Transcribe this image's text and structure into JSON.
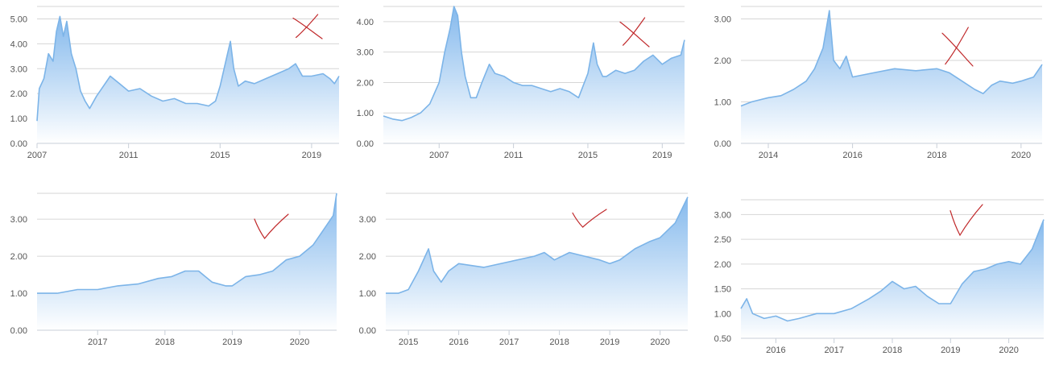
{
  "colors": {
    "line": "#7cb4e8",
    "area_top": "#7fb6ec",
    "area_bottom": "#ffffff",
    "grid": "#d6d6d6",
    "annotation": "#c0282a"
  },
  "chart_data": [
    {
      "type": "area",
      "annotation": "cross-mark",
      "yticks": [
        "0.00",
        "1.00",
        "2.00",
        "3.00",
        "4.00",
        "5.00"
      ],
      "ylim": [
        0,
        5.5
      ],
      "xticks": [
        "2007",
        "2011",
        "2015",
        "2019"
      ],
      "xtick_values": [
        2007,
        2011,
        2015,
        2019
      ],
      "xlim": [
        2007,
        2020.2
      ],
      "x": [
        2007.0,
        2007.1,
        2007.3,
        2007.5,
        2007.7,
        2007.85,
        2008.0,
        2008.15,
        2008.3,
        2008.5,
        2008.7,
        2008.9,
        2009.1,
        2009.3,
        2009.6,
        2009.9,
        2010.2,
        2010.6,
        2011.0,
        2011.5,
        2012.0,
        2012.5,
        2013.0,
        2013.5,
        2014.0,
        2014.5,
        2014.8,
        2015.0,
        2015.3,
        2015.45,
        2015.6,
        2015.8,
        2016.1,
        2016.5,
        2017.0,
        2017.5,
        2018.0,
        2018.3,
        2018.6,
        2019.0,
        2019.5,
        2019.8,
        2020.0,
        2020.2
      ],
      "y": [
        0.9,
        2.2,
        2.6,
        3.6,
        3.3,
        4.5,
        5.1,
        4.3,
        4.9,
        3.6,
        3.0,
        2.1,
        1.7,
        1.4,
        1.9,
        2.3,
        2.7,
        2.4,
        2.1,
        2.2,
        1.9,
        1.7,
        1.8,
        1.6,
        1.6,
        1.5,
        1.7,
        2.3,
        3.5,
        4.1,
        3.0,
        2.3,
        2.5,
        2.4,
        2.6,
        2.8,
        3.0,
        3.2,
        2.7,
        2.7,
        2.8,
        2.6,
        2.4,
        2.7
      ]
    },
    {
      "type": "area",
      "annotation": "cross-mark",
      "yticks": [
        "0.00",
        "1.00",
        "2.00",
        "3.00",
        "4.00"
      ],
      "ylim": [
        0,
        4.5
      ],
      "xticks": [
        "2007",
        "2011",
        "2015",
        "2019"
      ],
      "xtick_values": [
        2007,
        2011,
        2015,
        2019
      ],
      "xlim": [
        2004.0,
        2020.2
      ],
      "x": [
        2004.0,
        2004.5,
        2005.0,
        2005.5,
        2006.0,
        2006.5,
        2007.0,
        2007.3,
        2007.6,
        2007.8,
        2008.0,
        2008.2,
        2008.4,
        2008.7,
        2009.0,
        2009.3,
        2009.7,
        2010.0,
        2010.5,
        2011.0,
        2011.5,
        2012.0,
        2012.5,
        2013.0,
        2013.5,
        2014.0,
        2014.5,
        2015.0,
        2015.3,
        2015.5,
        2015.8,
        2016.0,
        2016.5,
        2017.0,
        2017.5,
        2018.0,
        2018.5,
        2019.0,
        2019.5,
        2020.0,
        2020.2
      ],
      "y": [
        0.9,
        0.8,
        0.75,
        0.85,
        1.0,
        1.3,
        2.0,
        3.0,
        3.8,
        4.5,
        4.2,
        3.0,
        2.2,
        1.5,
        1.5,
        2.0,
        2.6,
        2.3,
        2.2,
        2.0,
        1.9,
        1.9,
        1.8,
        1.7,
        1.8,
        1.7,
        1.5,
        2.3,
        3.3,
        2.6,
        2.2,
        2.2,
        2.4,
        2.3,
        2.4,
        2.7,
        2.9,
        2.6,
        2.8,
        2.9,
        3.4
      ]
    },
    {
      "type": "area",
      "annotation": "cross-mark",
      "yticks": [
        "0.00",
        "1.00",
        "2.00",
        "3.00"
      ],
      "ylim": [
        0,
        3.3
      ],
      "xticks": [
        "2014",
        "2016",
        "2018",
        "2020"
      ],
      "xtick_values": [
        2014,
        2016,
        2018,
        2020
      ],
      "xlim": [
        2013.35,
        2020.5
      ],
      "x": [
        2013.35,
        2013.6,
        2014.0,
        2014.3,
        2014.6,
        2014.9,
        2015.1,
        2015.3,
        2015.45,
        2015.55,
        2015.7,
        2015.85,
        2016.0,
        2016.5,
        2017.0,
        2017.5,
        2018.0,
        2018.3,
        2018.6,
        2018.9,
        2019.1,
        2019.3,
        2019.5,
        2019.8,
        2020.0,
        2020.3,
        2020.5
      ],
      "y": [
        0.9,
        1.0,
        1.1,
        1.15,
        1.3,
        1.5,
        1.8,
        2.3,
        3.2,
        2.0,
        1.8,
        2.1,
        1.6,
        1.7,
        1.8,
        1.75,
        1.8,
        1.7,
        1.5,
        1.3,
        1.2,
        1.4,
        1.5,
        1.45,
        1.5,
        1.6,
        1.9
      ]
    },
    {
      "type": "area",
      "annotation": "check-mark",
      "yticks": [
        "0.00",
        "1.00",
        "2.00",
        "3.00"
      ],
      "ylim": [
        0,
        3.7
      ],
      "xticks": [
        "2017",
        "2018",
        "2019",
        "2020"
      ],
      "xtick_values": [
        2017,
        2018,
        2019,
        2020
      ],
      "xlim": [
        2016.1,
        2020.55
      ],
      "x": [
        2016.1,
        2016.4,
        2016.7,
        2017.0,
        2017.3,
        2017.6,
        2017.9,
        2018.1,
        2018.3,
        2018.5,
        2018.7,
        2018.9,
        2019.0,
        2019.2,
        2019.4,
        2019.6,
        2019.8,
        2020.0,
        2020.2,
        2020.35,
        2020.5,
        2020.55
      ],
      "y": [
        1.0,
        1.0,
        1.1,
        1.1,
        1.2,
        1.25,
        1.4,
        1.45,
        1.6,
        1.6,
        1.3,
        1.2,
        1.2,
        1.45,
        1.5,
        1.6,
        1.9,
        2.0,
        2.3,
        2.7,
        3.1,
        3.7
      ]
    },
    {
      "type": "area",
      "annotation": "check-mark",
      "yticks": [
        "0.00",
        "1.00",
        "2.00",
        "3.00"
      ],
      "ylim": [
        0,
        3.7
      ],
      "xticks": [
        "2015",
        "2016",
        "2017",
        "2018",
        "2019",
        "2020"
      ],
      "xtick_values": [
        2015,
        2016,
        2017,
        2018,
        2019,
        2020
      ],
      "xlim": [
        2014.55,
        2020.55
      ],
      "x": [
        2014.55,
        2014.8,
        2015.0,
        2015.2,
        2015.4,
        2015.5,
        2015.65,
        2015.8,
        2016.0,
        2016.5,
        2017.0,
        2017.5,
        2017.7,
        2017.9,
        2018.2,
        2018.5,
        2018.8,
        2019.0,
        2019.2,
        2019.5,
        2019.8,
        2020.0,
        2020.3,
        2020.55
      ],
      "y": [
        1.0,
        1.0,
        1.1,
        1.6,
        2.2,
        1.6,
        1.3,
        1.6,
        1.8,
        1.7,
        1.85,
        2.0,
        2.1,
        1.9,
        2.1,
        2.0,
        1.9,
        1.8,
        1.9,
        2.2,
        2.4,
        2.5,
        2.9,
        3.6
      ]
    },
    {
      "type": "area",
      "annotation": "check-mark",
      "yticks": [
        "0.50",
        "1.00",
        "1.50",
        "2.00",
        "2.50",
        "3.00"
      ],
      "ylim": [
        0.5,
        3.3
      ],
      "xticks": [
        "2016",
        "2017",
        "2018",
        "2019",
        "2020"
      ],
      "xtick_values": [
        2016,
        2017,
        2018,
        2019,
        2020
      ],
      "xlim": [
        2015.4,
        2020.6
      ],
      "x": [
        2015.4,
        2015.5,
        2015.6,
        2015.8,
        2016.0,
        2016.2,
        2016.4,
        2016.7,
        2017.0,
        2017.3,
        2017.6,
        2017.8,
        2018.0,
        2018.2,
        2018.4,
        2018.6,
        2018.8,
        2019.0,
        2019.2,
        2019.4,
        2019.6,
        2019.8,
        2020.0,
        2020.2,
        2020.4,
        2020.6
      ],
      "y": [
        1.1,
        1.3,
        1.0,
        0.9,
        0.95,
        0.85,
        0.9,
        1.0,
        1.0,
        1.1,
        1.3,
        1.45,
        1.65,
        1.5,
        1.55,
        1.35,
        1.2,
        1.2,
        1.6,
        1.85,
        1.9,
        2.0,
        2.05,
        2.0,
        2.3,
        2.9
      ]
    }
  ]
}
